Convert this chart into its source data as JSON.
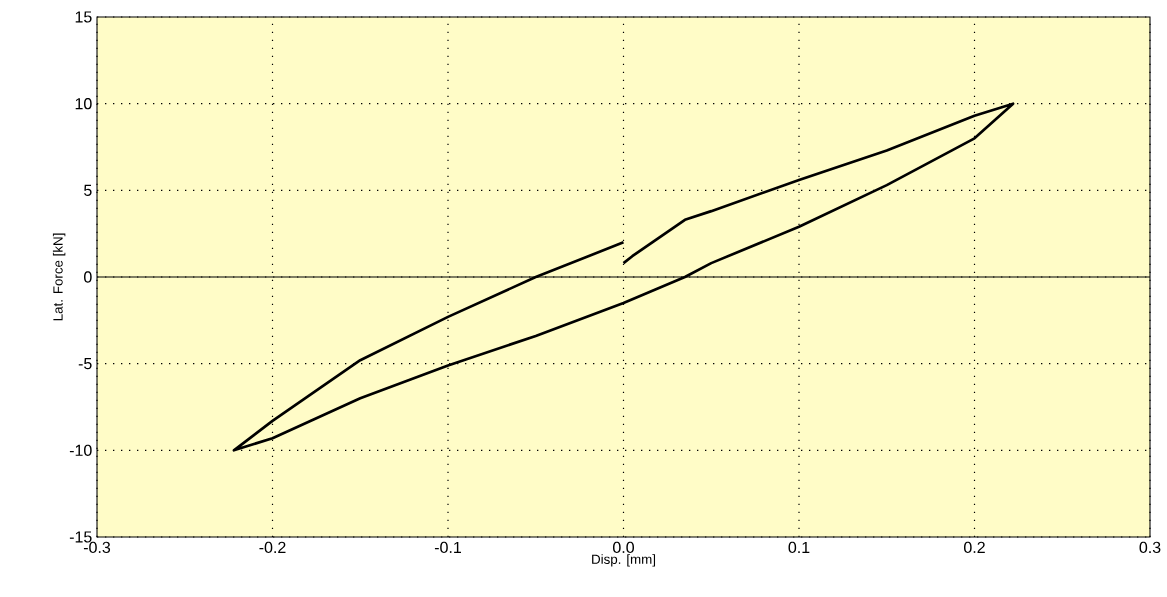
{
  "chart_data": {
    "type": "line",
    "xlabel": "Disp. [mm]",
    "ylabel": "Lat. Force [kN]",
    "xlim": [
      -0.3,
      0.3
    ],
    "xticks": [
      {
        "value": -0.3,
        "label": "-0.3"
      },
      {
        "value": -0.2,
        "label": "-0.2"
      },
      {
        "value": -0.1,
        "label": "-0.1"
      },
      {
        "value": 0,
        "label": "0.0"
      },
      {
        "value": 0.1,
        "label": "0.1"
      },
      {
        "value": 0.2,
        "label": "0.2"
      },
      {
        "value": 0.3,
        "label": "0.3"
      }
    ],
    "ylim": [
      -15,
      15
    ],
    "yticks": [
      -15,
      -10,
      -5,
      0,
      5,
      10,
      15
    ],
    "grid": true,
    "marker": "none",
    "line_style": "solid",
    "ref_lines": [
      {
        "axis": "y",
        "value": 0,
        "color": "#000000"
      }
    ],
    "series": [
      {
        "color": "#000000",
        "x": [
          0,
          0.005,
          0.035,
          0.05,
          0.1,
          0.15,
          0.2,
          0.222,
          0.2,
          0.15,
          0.1,
          0.05,
          0.035,
          0,
          -0.05,
          -0.1,
          -0.15,
          -0.2,
          -0.222,
          -0.2,
          -0.15,
          -0.1,
          -0.05,
          0
        ],
        "values": [
          0.8,
          1.2,
          3.3,
          3.8,
          5.6,
          7.3,
          9.3,
          10,
          8.0,
          5.3,
          2.9,
          0.8,
          0,
          -1.5,
          -3.4,
          -5.1,
          -7.0,
          -9.3,
          -10,
          -8.3,
          -4.8,
          -2.3,
          0,
          2.0
        ]
      }
    ]
  }
}
